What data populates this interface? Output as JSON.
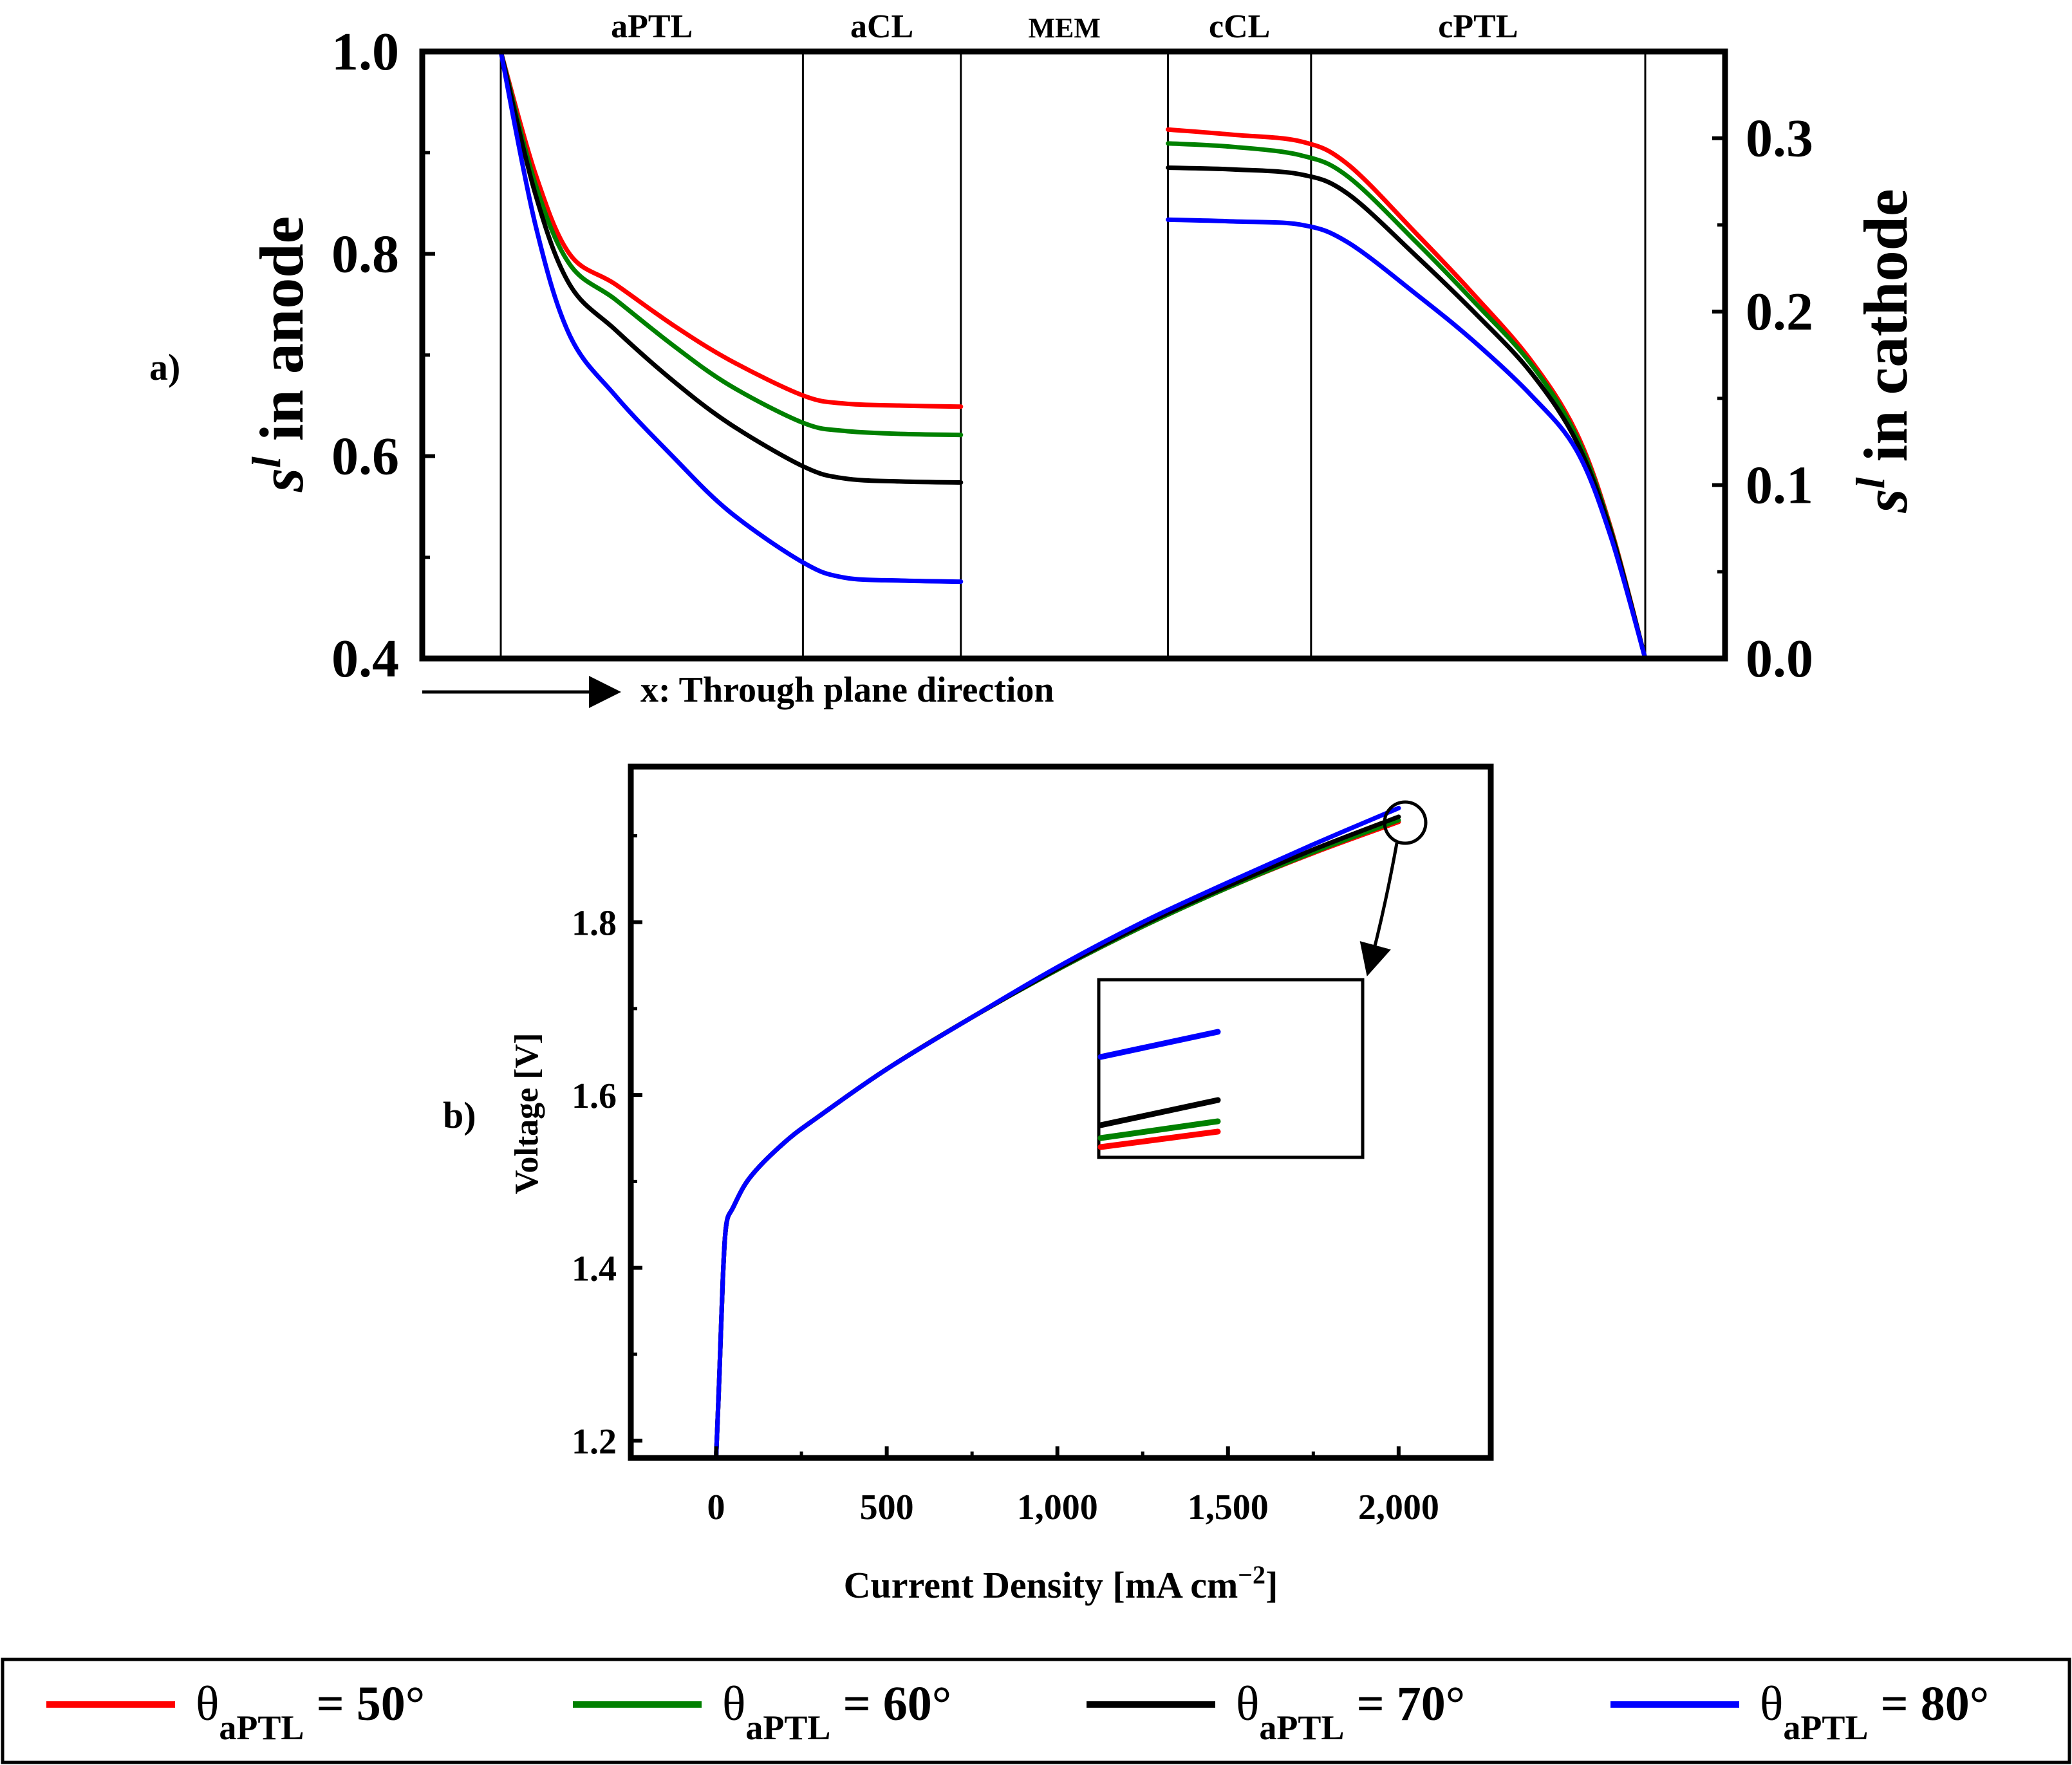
{
  "chart_data": [
    {
      "panel": "a)",
      "type": "line",
      "xlabel": "x: Through plane direction",
      "ylabel_left": {
        "main": "s",
        "sup": "l",
        "rest": " in anode"
      },
      "ylabel_right": {
        "main": "s",
        "sup": "l",
        "rest": " in cathode"
      },
      "ylim_left": [
        0.4,
        1.0
      ],
      "ylim_right": [
        0.0,
        0.35
      ],
      "yticks_left": [
        "0.4",
        "0.6",
        "0.8",
        "1.0"
      ],
      "yticks_right": [
        "0.0",
        "0.1",
        "0.2",
        "0.3"
      ],
      "regions": [
        "aPTL",
        "aCL",
        "MEM",
        "cCL",
        "cPTL"
      ],
      "x_units": "normalized through-plane position (0 = anode PTL inlet, 1 = cathode PTL outlet)",
      "region_boundaries": [
        0.0,
        0.264,
        0.402,
        0.583,
        0.708,
        1.0
      ],
      "series": [
        {
          "name": "θaPTL = 50°",
          "color": "#ff0000",
          "anode_x": [
            0.0,
            0.03,
            0.06,
            0.1,
            0.15,
            0.2,
            0.264,
            0.3,
            0.35,
            0.402
          ],
          "anode_y": [
            1.0,
            0.88,
            0.8,
            0.77,
            0.73,
            0.695,
            0.66,
            0.652,
            0.65,
            0.649
          ],
          "cathode_x": [
            0.583,
            0.64,
            0.7,
            0.74,
            0.8,
            0.85,
            0.9,
            0.94,
            0.97,
            1.0
          ],
          "cathode_y": [
            0.305,
            0.302,
            0.298,
            0.285,
            0.245,
            0.21,
            0.172,
            0.13,
            0.075,
            0.0
          ]
        },
        {
          "name": "θaPTL = 60°",
          "color": "#008000",
          "anode_x": [
            0.0,
            0.03,
            0.06,
            0.1,
            0.15,
            0.2,
            0.264,
            0.3,
            0.35,
            0.402
          ],
          "anode_y": [
            1.0,
            0.87,
            0.79,
            0.755,
            0.71,
            0.67,
            0.633,
            0.625,
            0.622,
            0.621
          ],
          "cathode_x": [
            0.583,
            0.64,
            0.7,
            0.74,
            0.8,
            0.85,
            0.9,
            0.94,
            0.97,
            1.0
          ],
          "cathode_y": [
            0.297,
            0.295,
            0.29,
            0.278,
            0.24,
            0.206,
            0.17,
            0.128,
            0.074,
            0.0
          ]
        },
        {
          "name": "θaPTL = 70°",
          "color": "#000000",
          "anode_x": [
            0.0,
            0.03,
            0.06,
            0.1,
            0.15,
            0.2,
            0.264,
            0.3,
            0.35,
            0.402
          ],
          "anode_y": [
            1.0,
            0.86,
            0.77,
            0.725,
            0.675,
            0.632,
            0.59,
            0.578,
            0.575,
            0.574
          ],
          "cathode_x": [
            0.583,
            0.64,
            0.7,
            0.74,
            0.8,
            0.85,
            0.9,
            0.94,
            0.97,
            1.0
          ],
          "cathode_y": [
            0.283,
            0.282,
            0.279,
            0.268,
            0.232,
            0.2,
            0.165,
            0.125,
            0.073,
            0.0
          ]
        },
        {
          "name": "θaPTL = 80°",
          "color": "#0000ff",
          "anode_x": [
            0.0,
            0.03,
            0.06,
            0.1,
            0.15,
            0.2,
            0.264,
            0.3,
            0.35,
            0.402
          ],
          "anode_y": [
            1.0,
            0.83,
            0.72,
            0.66,
            0.6,
            0.545,
            0.495,
            0.48,
            0.477,
            0.476
          ],
          "cathode_x": [
            0.583,
            0.64,
            0.7,
            0.74,
            0.8,
            0.85,
            0.9,
            0.94,
            0.97,
            1.0
          ],
          "cathode_y": [
            0.253,
            0.252,
            0.25,
            0.24,
            0.21,
            0.183,
            0.152,
            0.12,
            0.07,
            0.0
          ]
        }
      ]
    },
    {
      "panel": "b)",
      "type": "line",
      "xlabel": "Current Density [mA cm",
      "xlabel_sup": "−2",
      "xlabel_end": "]",
      "ylabel": "Voltage [V]",
      "xlim": [
        -250,
        2270
      ],
      "ylim": [
        1.18,
        1.98
      ],
      "xticks": [
        0,
        500,
        1000,
        1500,
        2000
      ],
      "xtick_labels": [
        "0",
        "500",
        "1,000",
        "1,500",
        "2,000"
      ],
      "yticks": [
        1.2,
        1.4,
        1.6,
        1.8
      ],
      "ytick_labels": [
        "1.2",
        "1.4",
        "1.6",
        "1.8"
      ],
      "x": [
        0,
        10,
        20,
        30,
        50,
        100,
        200,
        300,
        500,
        750,
        1000,
        1250,
        1500,
        1750,
        2000
      ],
      "series": [
        {
          "name": "θaPTL = 50°",
          "color": "#ff0000",
          "values": [
            1.18,
            1.28,
            1.39,
            1.45,
            1.47,
            1.505,
            1.545,
            1.575,
            1.63,
            1.69,
            1.745,
            1.795,
            1.84,
            1.88,
            1.916
          ]
        },
        {
          "name": "θaPTL = 60°",
          "color": "#008000",
          "values": [
            1.18,
            1.28,
            1.39,
            1.45,
            1.47,
            1.505,
            1.545,
            1.575,
            1.63,
            1.69,
            1.745,
            1.795,
            1.84,
            1.881,
            1.918
          ]
        },
        {
          "name": "θaPTL = 70°",
          "color": "#000000",
          "values": [
            1.18,
            1.28,
            1.39,
            1.45,
            1.47,
            1.505,
            1.545,
            1.575,
            1.63,
            1.69,
            1.746,
            1.797,
            1.842,
            1.884,
            1.922
          ]
        },
        {
          "name": "θaPTL = 80°",
          "color": "#0000ff",
          "values": [
            1.18,
            1.28,
            1.39,
            1.45,
            1.47,
            1.505,
            1.545,
            1.575,
            1.63,
            1.69,
            1.748,
            1.8,
            1.846,
            1.89,
            1.932
          ]
        }
      ],
      "inset_zoom": {
        "shows": "zoomed end of curves near 2,000 mA cm−2",
        "order_top_to_bottom": [
          "θaPTL = 80°",
          "θaPTL = 70°",
          "θaPTL = 60°",
          "θaPTL = 50°"
        ]
      }
    }
  ],
  "legend": [
    {
      "theta": "θ",
      "sub": "aPTL",
      "value": " = 50°",
      "color": "#ff0000"
    },
    {
      "theta": "θ",
      "sub": "aPTL",
      "value": " = 60°",
      "color": "#008000"
    },
    {
      "theta": "θ",
      "sub": "aPTL",
      "value": " = 70°",
      "color": "#000000"
    },
    {
      "theta": "θ",
      "sub": "aPTL",
      "value": " = 80°",
      "color": "#0000ff"
    }
  ]
}
